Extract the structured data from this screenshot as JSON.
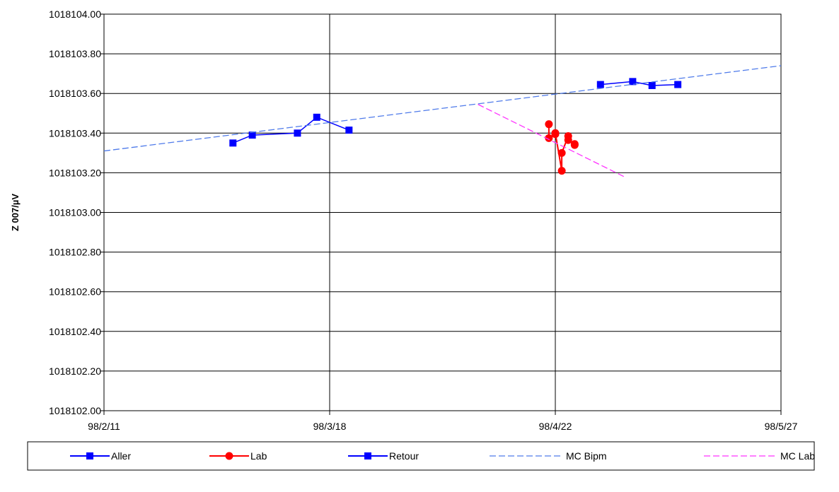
{
  "chart_data": {
    "type": "line",
    "title": "",
    "xlabel": "",
    "ylabel": "Z 007/µV",
    "xlim": [
      "1998-02-11",
      "1998-05-27"
    ],
    "ylim": [
      1018102.0,
      1018104.0
    ],
    "x_ticks": [
      "98/2/11",
      "98/3/18",
      "98/4/22",
      "98/5/27"
    ],
    "y_ticks": [
      "1018102.00",
      "1018102.20",
      "1018102.40",
      "1018102.60",
      "1018102.80",
      "1018103.00",
      "1018103.20",
      "1018103.40",
      "1018103.60",
      "1018103.80",
      "1018104.00"
    ],
    "grid": true,
    "legend_position": "bottom",
    "series": [
      {
        "name": "Aller",
        "color": "#0000ff",
        "marker": "square",
        "points": [
          {
            "x": "1998-03-03",
            "y": 1018103.35
          },
          {
            "x": "1998-03-06",
            "y": 1018103.39
          },
          {
            "x": "1998-03-13",
            "y": 1018103.4
          },
          {
            "x": "1998-03-16",
            "y": 1018103.48
          },
          {
            "x": "1998-03-21",
            "y": 1018103.415
          }
        ]
      },
      {
        "name": "Lab",
        "color": "#ff0000",
        "marker": "circle",
        "points": [
          {
            "x": "1998-04-21",
            "y": 1018103.445
          },
          {
            "x": "1998-04-21",
            "y": 1018103.375
          },
          {
            "x": "1998-04-22",
            "y": 1018103.395
          },
          {
            "x": "1998-04-22",
            "y": 1018103.4
          },
          {
            "x": "1998-04-23",
            "y": 1018103.21
          },
          {
            "x": "1998-04-23",
            "y": 1018103.3
          },
          {
            "x": "1998-04-24",
            "y": 1018103.385
          },
          {
            "x": "1998-04-24",
            "y": 1018103.365
          },
          {
            "x": "1998-04-25",
            "y": 1018103.345
          },
          {
            "x": "1998-04-25",
            "y": 1018103.34
          }
        ]
      },
      {
        "name": "Retour",
        "color": "#0000ff",
        "marker": "square",
        "points": [
          {
            "x": "1998-04-29",
            "y": 1018103.645
          },
          {
            "x": "1998-05-04",
            "y": 1018103.66
          },
          {
            "x": "1998-05-07",
            "y": 1018103.64
          },
          {
            "x": "1998-05-11",
            "y": 1018103.645
          }
        ]
      },
      {
        "name": "MC Bipm",
        "color": "#4f7bea",
        "style": "dashed",
        "points": [
          {
            "x": "1998-02-11",
            "y": 1018103.31
          },
          {
            "x": "1998-05-27",
            "y": 1018103.74
          }
        ]
      },
      {
        "name": "MC Lab",
        "color": "#ff33ff",
        "style": "dashed",
        "points": [
          {
            "x": "1998-04-10",
            "y": 1018103.545
          },
          {
            "x": "1998-05-03",
            "y": 1018103.175
          }
        ]
      }
    ]
  }
}
